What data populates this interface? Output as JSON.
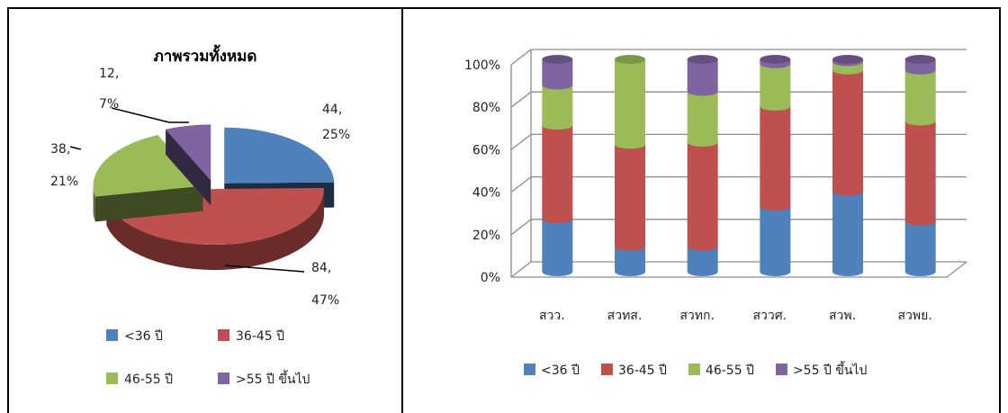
{
  "chart_data": [
    {
      "type": "pie",
      "title": "ภาพรวมทั้งหมด",
      "colors": [
        "#4F81BD",
        "#C0504D",
        "#9BBB59",
        "#8064A2"
      ],
      "slices": [
        {
          "name": "<36 ปี",
          "value": 44,
          "percent": "25%",
          "label_value": "44,",
          "label_percent": "25%"
        },
        {
          "name": "36-45 ปี",
          "value": 84,
          "percent": "47%",
          "label_value": "84,",
          "label_percent": "47%"
        },
        {
          "name": "46-55 ปี",
          "value": 38,
          "percent": "21%",
          "label_value": "38,",
          "label_percent": "21%"
        },
        {
          "name": ">55 ปี ขึ้นไป",
          "value": 12,
          "percent": "7%",
          "label_value": "12,",
          "label_percent": "7%"
        }
      ],
      "legend": {
        "placement": "bottom",
        "entries": [
          "<36 ปี",
          "36-45 ปี",
          "46-55 ปี",
          ">55 ปี ขึ้นไป"
        ]
      }
    },
    {
      "type": "bar",
      "stacked": "100%",
      "categories": [
        "สวว.",
        "สวทส.",
        "สวทก.",
        "สววศ.",
        "สวพ.",
        "สวพย."
      ],
      "yticks": [
        "0%",
        "20%",
        "40%",
        "60%",
        "80%",
        "100%"
      ],
      "ylim": [
        0,
        100
      ],
      "grid": true,
      "series": [
        {
          "name": "<36 ปี",
          "color": "#4F81BD",
          "values": [
            25,
            12,
            12,
            31,
            38,
            24
          ]
        },
        {
          "name": "36-45 ปี",
          "color": "#C0504D",
          "values": [
            44,
            48,
            49,
            47,
            57,
            47
          ]
        },
        {
          "name": "46-55 ปี",
          "color": "#9BBB59",
          "values": [
            19,
            40,
            24,
            20,
            4,
            24
          ]
        },
        {
          "name": ">55 ปี ขึ้นไป",
          "color": "#8064A2",
          "values": [
            12,
            0,
            15,
            2,
            1,
            5
          ]
        }
      ],
      "legend": {
        "placement": "bottom"
      }
    }
  ]
}
